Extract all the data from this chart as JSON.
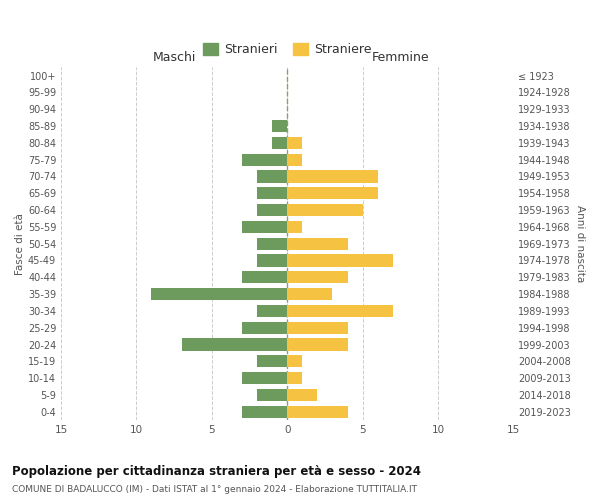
{
  "age_groups": [
    "0-4",
    "5-9",
    "10-14",
    "15-19",
    "20-24",
    "25-29",
    "30-34",
    "35-39",
    "40-44",
    "45-49",
    "50-54",
    "55-59",
    "60-64",
    "65-69",
    "70-74",
    "75-79",
    "80-84",
    "85-89",
    "90-94",
    "95-99",
    "100+"
  ],
  "birth_years": [
    "2019-2023",
    "2014-2018",
    "2009-2013",
    "2004-2008",
    "1999-2003",
    "1994-1998",
    "1989-1993",
    "1984-1988",
    "1979-1983",
    "1974-1978",
    "1969-1973",
    "1964-1968",
    "1959-1963",
    "1954-1958",
    "1949-1953",
    "1944-1948",
    "1939-1943",
    "1934-1938",
    "1929-1933",
    "1924-1928",
    "≤ 1923"
  ],
  "males": [
    3,
    2,
    3,
    2,
    7,
    3,
    2,
    9,
    3,
    2,
    2,
    3,
    2,
    2,
    2,
    3,
    1,
    1,
    0,
    0,
    0
  ],
  "females": [
    4,
    2,
    1,
    1,
    4,
    4,
    7,
    3,
    4,
    7,
    4,
    1,
    5,
    6,
    6,
    1,
    1,
    0,
    0,
    0,
    0
  ],
  "male_color": "#6d9b5e",
  "female_color": "#f5c242",
  "grid_color": "#cccccc",
  "center_line_color": "#999966",
  "title": "Popolazione per cittadinanza straniera per età e sesso - 2024",
  "subtitle": "COMUNE DI BADALUCCO (IM) - Dati ISTAT al 1° gennaio 2024 - Elaborazione TUTTITALIA.IT",
  "xlabel_left": "Maschi",
  "xlabel_right": "Femmine",
  "ylabel_left": "Fasce di età",
  "ylabel_right": "Anni di nascita",
  "legend_stranieri": "Stranieri",
  "legend_straniere": "Straniere",
  "xlim": 15,
  "background_color": "#ffffff",
  "bar_height": 0.72
}
